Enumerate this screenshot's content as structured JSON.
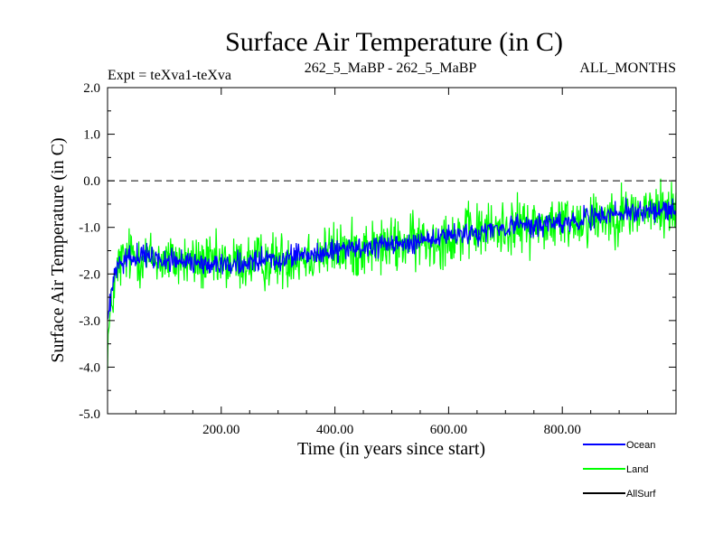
{
  "chart_data": {
    "type": "line",
    "title": "Surface Air Temperature (in C)",
    "subtitle_left": "Expt = teXva1-teXva",
    "subtitle_center": "262_5_MaBP - 262_5_MaBP",
    "subtitle_right": "ALL_MONTHS",
    "xlabel": "Time (in years since start)",
    "ylabel": "Surface Air Temperature (in C)",
    "xlim": [
      0,
      1000
    ],
    "ylim": [
      -5.0,
      2.0
    ],
    "x_ticks": [
      200,
      400,
      600,
      800
    ],
    "x_tick_labels": [
      "200.00",
      "400.00",
      "600.00",
      "800.00"
    ],
    "y_ticks": [
      -5,
      -4,
      -3,
      -2,
      -1,
      0,
      1,
      2
    ],
    "y_tick_labels": [
      "-5.0",
      "-4.0",
      "-3.0",
      "-2.0",
      "-1.0",
      "0.0",
      "1.0",
      "2.0"
    ],
    "reference_line": {
      "y": 0.0,
      "style": "dashed"
    },
    "series": [
      {
        "name": "Land",
        "color": "#00ff00",
        "trend_x": [
          0,
          10,
          20,
          40,
          100,
          200,
          300,
          400,
          500,
          600,
          700,
          800,
          900,
          1000
        ],
        "trend_y": [
          -3.5,
          -2.4,
          -1.8,
          -1.6,
          -1.7,
          -1.8,
          -1.7,
          -1.5,
          -1.4,
          -1.2,
          -1.0,
          -0.9,
          -0.7,
          -0.6
        ],
        "noise_amplitude": 0.9
      },
      {
        "name": "Ocean",
        "color": "#0000ff",
        "trend_x": [
          0,
          10,
          20,
          40,
          100,
          200,
          300,
          400,
          500,
          600,
          700,
          800,
          900,
          1000
        ],
        "trend_y": [
          -3.0,
          -2.2,
          -1.8,
          -1.6,
          -1.7,
          -1.8,
          -1.7,
          -1.5,
          -1.4,
          -1.2,
          -1.0,
          -0.9,
          -0.7,
          -0.6
        ],
        "noise_amplitude": 0.35
      },
      {
        "name": "AllSurf",
        "color": "#000000",
        "trend_x": [],
        "trend_y": [],
        "noise_amplitude": 0
      }
    ],
    "legend": [
      "Ocean",
      "Land",
      "AllSurf"
    ],
    "legend_colors": [
      "#0000ff",
      "#00ff00",
      "#000000"
    ],
    "legend_placement": "bottom-right"
  }
}
